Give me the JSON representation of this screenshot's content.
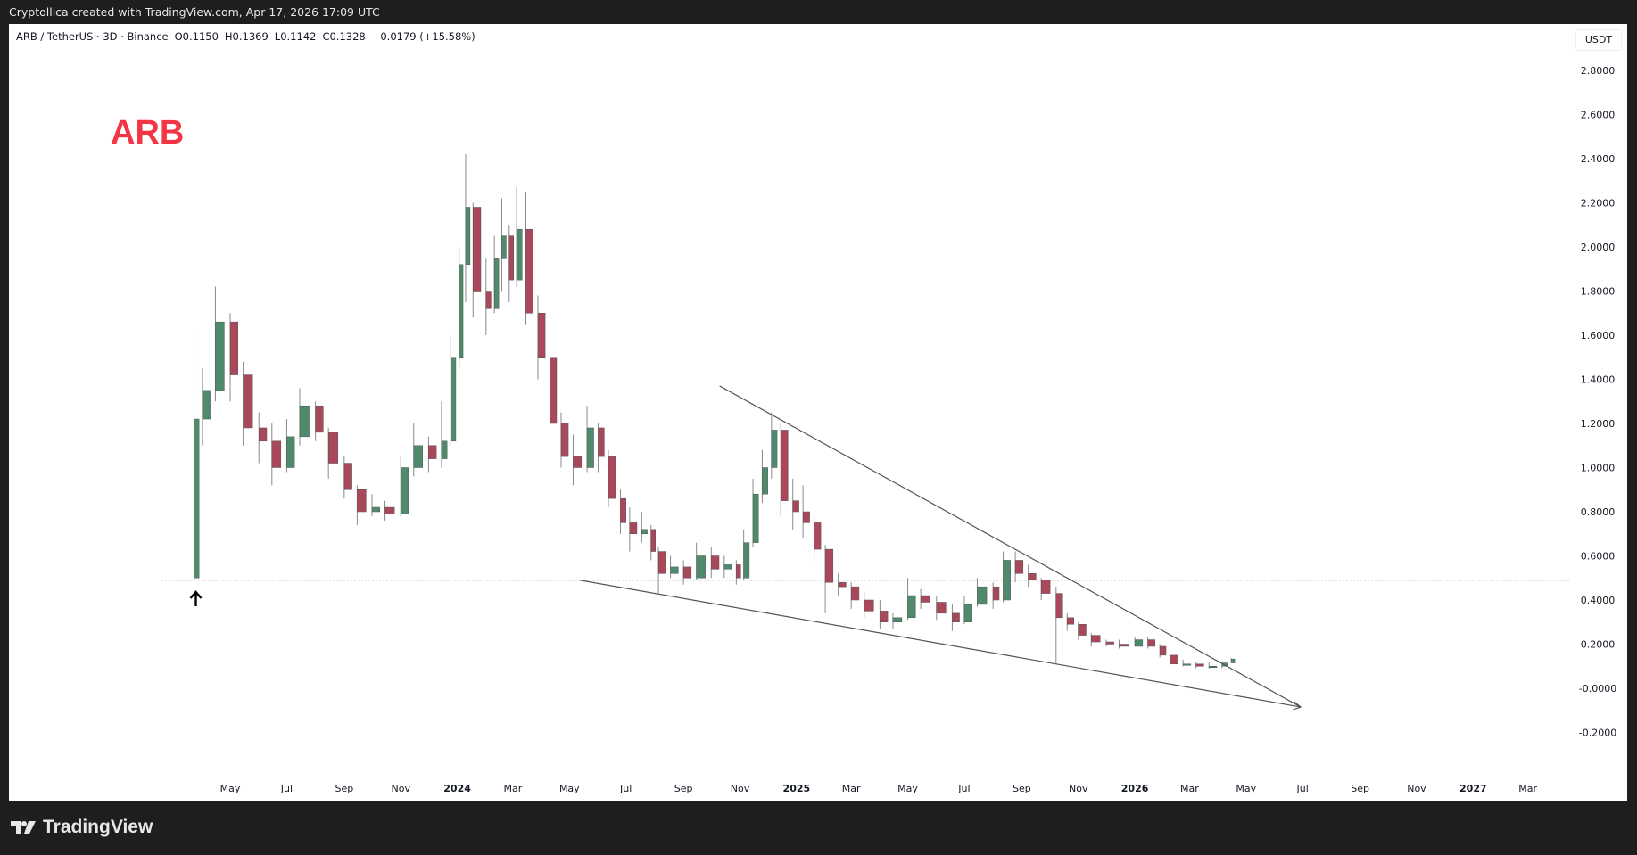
{
  "header": {
    "attribution": "Cryptollica created with TradingView.com, Apr 17, 2026 17:09 UTC"
  },
  "legend": {
    "symbol": "ARB / TetherUS · 3D · Binance",
    "open": "O0.1150",
    "high": "H0.1369",
    "low": "L0.1142",
    "close": "C0.1328",
    "change": "+0.0179 (+15.58%)"
  },
  "annotation": {
    "text": "ARB",
    "color": "#f23645"
  },
  "footer": {
    "brand": "TradingView"
  },
  "chart_data": {
    "type": "candlestick",
    "currency": "USDT",
    "ylim": [
      -0.3,
      2.95
    ],
    "y_ticks": [
      "2.8000",
      "2.6000",
      "2.4000",
      "2.2000",
      "2.0000",
      "1.8000",
      "1.6000",
      "1.4000",
      "1.2000",
      "1.0000",
      "0.8000",
      "0.6000",
      "0.4000",
      "0.2000",
      "-0.0000",
      "-0.2000"
    ],
    "x_ticks": [
      {
        "date": "2023-05-01",
        "label": "May"
      },
      {
        "date": "2023-07-01",
        "label": "Jul"
      },
      {
        "date": "2023-09-01",
        "label": "Sep"
      },
      {
        "date": "2023-11-01",
        "label": "Nov"
      },
      {
        "date": "2024-01-01",
        "label": "2024",
        "bold": true
      },
      {
        "date": "2024-03-01",
        "label": "Mar"
      },
      {
        "date": "2024-05-01",
        "label": "May"
      },
      {
        "date": "2024-07-01",
        "label": "Jul"
      },
      {
        "date": "2024-09-01",
        "label": "Sep"
      },
      {
        "date": "2024-11-01",
        "label": "Nov"
      },
      {
        "date": "2025-01-01",
        "label": "2025",
        "bold": true
      },
      {
        "date": "2025-03-01",
        "label": "Mar"
      },
      {
        "date": "2025-05-01",
        "label": "May"
      },
      {
        "date": "2025-07-01",
        "label": "Jul"
      },
      {
        "date": "2025-09-01",
        "label": "Sep"
      },
      {
        "date": "2025-11-01",
        "label": "Nov"
      },
      {
        "date": "2026-01-01",
        "label": "2026",
        "bold": true
      },
      {
        "date": "2026-03-01",
        "label": "Mar"
      },
      {
        "date": "2026-05-01",
        "label": "May"
      },
      {
        "date": "2026-07-01",
        "label": "Jul"
      },
      {
        "date": "2026-09-01",
        "label": "Sep"
      },
      {
        "date": "2026-11-01",
        "label": "Nov"
      },
      {
        "date": "2027-01-01",
        "label": "2027",
        "bold": true
      },
      {
        "date": "2027-03-01",
        "label": "Mar"
      }
    ],
    "colors": {
      "up": "#4e8a6b",
      "down": "#a8485a",
      "wick": "#8a8a8a",
      "trendline": "#555555"
    },
    "candles": [
      [
        "2023-03-23",
        0.5,
        1.6,
        0.49,
        1.22
      ],
      [
        "2023-04-01",
        1.22,
        1.45,
        1.1,
        1.35
      ],
      [
        "2023-04-15",
        1.35,
        1.82,
        1.3,
        1.66
      ],
      [
        "2023-05-01",
        1.66,
        1.7,
        1.3,
        1.42
      ],
      [
        "2023-05-15",
        1.42,
        1.48,
        1.1,
        1.18
      ],
      [
        "2023-06-01",
        1.18,
        1.25,
        1.02,
        1.12
      ],
      [
        "2023-06-15",
        1.12,
        1.2,
        0.92,
        1.0
      ],
      [
        "2023-07-01",
        1.0,
        1.22,
        0.98,
        1.14
      ],
      [
        "2023-07-15",
        1.14,
        1.36,
        1.1,
        1.28
      ],
      [
        "2023-08-01",
        1.28,
        1.3,
        1.12,
        1.16
      ],
      [
        "2023-08-15",
        1.16,
        1.18,
        0.95,
        1.02
      ],
      [
        "2023-09-01",
        1.02,
        1.05,
        0.86,
        0.9
      ],
      [
        "2023-09-15",
        0.9,
        0.92,
        0.74,
        0.8
      ],
      [
        "2023-10-01",
        0.8,
        0.88,
        0.78,
        0.82
      ],
      [
        "2023-10-15",
        0.82,
        0.85,
        0.76,
        0.79
      ],
      [
        "2023-11-01",
        0.79,
        1.05,
        0.78,
        1.0
      ],
      [
        "2023-11-15",
        1.0,
        1.2,
        0.96,
        1.1
      ],
      [
        "2023-12-01",
        1.1,
        1.14,
        0.98,
        1.04
      ],
      [
        "2023-12-15",
        1.04,
        1.3,
        1.0,
        1.12
      ],
      [
        "2023-12-25",
        1.12,
        1.6,
        1.1,
        1.5
      ],
      [
        "2024-01-03",
        1.5,
        2.0,
        1.45,
        1.92
      ],
      [
        "2024-01-10",
        1.92,
        2.42,
        1.75,
        2.18
      ],
      [
        "2024-01-18",
        2.18,
        2.2,
        1.68,
        1.8
      ],
      [
        "2024-02-01",
        1.8,
        1.95,
        1.6,
        1.72
      ],
      [
        "2024-02-10",
        1.72,
        2.05,
        1.7,
        1.95
      ],
      [
        "2024-02-18",
        1.95,
        2.22,
        1.8,
        2.05
      ],
      [
        "2024-02-26",
        2.05,
        2.1,
        1.75,
        1.85
      ],
      [
        "2024-03-05",
        1.85,
        2.27,
        1.82,
        2.08
      ],
      [
        "2024-03-15",
        2.08,
        2.25,
        1.65,
        1.7
      ],
      [
        "2024-03-28",
        1.7,
        1.78,
        1.4,
        1.5
      ],
      [
        "2024-04-10",
        1.5,
        1.52,
        0.86,
        1.2
      ],
      [
        "2024-04-22",
        1.2,
        1.25,
        1.0,
        1.05
      ],
      [
        "2024-05-05",
        1.05,
        1.15,
        0.92,
        1.0
      ],
      [
        "2024-05-20",
        1.0,
        1.28,
        0.98,
        1.18
      ],
      [
        "2024-06-01",
        1.18,
        1.2,
        0.98,
        1.05
      ],
      [
        "2024-06-12",
        1.05,
        1.08,
        0.82,
        0.86
      ],
      [
        "2024-06-25",
        0.86,
        0.9,
        0.7,
        0.75
      ],
      [
        "2024-07-05",
        0.75,
        0.82,
        0.62,
        0.7
      ],
      [
        "2024-07-18",
        0.7,
        0.8,
        0.66,
        0.72
      ],
      [
        "2024-07-28",
        0.72,
        0.74,
        0.58,
        0.62
      ],
      [
        "2024-08-05",
        0.62,
        0.64,
        0.43,
        0.52
      ],
      [
        "2024-08-18",
        0.52,
        0.6,
        0.5,
        0.55
      ],
      [
        "2024-09-01",
        0.55,
        0.58,
        0.47,
        0.5
      ],
      [
        "2024-09-15",
        0.5,
        0.66,
        0.49,
        0.6
      ],
      [
        "2024-10-01",
        0.6,
        0.64,
        0.5,
        0.54
      ],
      [
        "2024-10-15",
        0.54,
        0.6,
        0.5,
        0.56
      ],
      [
        "2024-10-28",
        0.56,
        0.58,
        0.47,
        0.5
      ],
      [
        "2024-11-05",
        0.5,
        0.72,
        0.49,
        0.66
      ],
      [
        "2024-11-15",
        0.66,
        0.95,
        0.64,
        0.88
      ],
      [
        "2024-11-25",
        0.88,
        1.08,
        0.84,
        1.0
      ],
      [
        "2024-12-05",
        1.0,
        1.25,
        0.95,
        1.17
      ],
      [
        "2024-12-15",
        1.17,
        1.2,
        0.78,
        0.85
      ],
      [
        "2024-12-28",
        0.85,
        0.95,
        0.72,
        0.8
      ],
      [
        "2025-01-08",
        0.8,
        0.92,
        0.68,
        0.75
      ],
      [
        "2025-01-20",
        0.75,
        0.78,
        0.58,
        0.63
      ],
      [
        "2025-02-01",
        0.63,
        0.65,
        0.34,
        0.48
      ],
      [
        "2025-02-15",
        0.48,
        0.52,
        0.42,
        0.46
      ],
      [
        "2025-03-01",
        0.46,
        0.48,
        0.36,
        0.4
      ],
      [
        "2025-03-15",
        0.4,
        0.44,
        0.32,
        0.35
      ],
      [
        "2025-04-01",
        0.35,
        0.4,
        0.27,
        0.3
      ],
      [
        "2025-04-15",
        0.3,
        0.34,
        0.27,
        0.32
      ],
      [
        "2025-05-01",
        0.32,
        0.5,
        0.31,
        0.42
      ],
      [
        "2025-05-15",
        0.42,
        0.45,
        0.36,
        0.39
      ],
      [
        "2025-06-01",
        0.39,
        0.42,
        0.31,
        0.34
      ],
      [
        "2025-06-18",
        0.34,
        0.38,
        0.26,
        0.3
      ],
      [
        "2025-07-01",
        0.3,
        0.42,
        0.29,
        0.38
      ],
      [
        "2025-07-15",
        0.38,
        0.5,
        0.37,
        0.46
      ],
      [
        "2025-08-01",
        0.46,
        0.48,
        0.36,
        0.4
      ],
      [
        "2025-08-12",
        0.4,
        0.62,
        0.39,
        0.58
      ],
      [
        "2025-08-25",
        0.58,
        0.62,
        0.48,
        0.52
      ],
      [
        "2025-09-08",
        0.52,
        0.56,
        0.46,
        0.49
      ],
      [
        "2025-09-22",
        0.49,
        0.5,
        0.4,
        0.43
      ],
      [
        "2025-10-08",
        0.43,
        0.46,
        0.11,
        0.32
      ],
      [
        "2025-10-20",
        0.32,
        0.34,
        0.26,
        0.29
      ],
      [
        "2025-11-01",
        0.29,
        0.3,
        0.22,
        0.24
      ],
      [
        "2025-11-15",
        0.24,
        0.25,
        0.19,
        0.21
      ],
      [
        "2025-12-01",
        0.21,
        0.22,
        0.19,
        0.2
      ],
      [
        "2025-12-15",
        0.2,
        0.22,
        0.18,
        0.19
      ],
      [
        "2026-01-01",
        0.19,
        0.23,
        0.19,
        0.22
      ],
      [
        "2026-01-15",
        0.22,
        0.23,
        0.18,
        0.19
      ],
      [
        "2026-01-28",
        0.19,
        0.2,
        0.14,
        0.15
      ],
      [
        "2026-02-08",
        0.15,
        0.16,
        0.1,
        0.11
      ],
      [
        "2026-02-22",
        0.11,
        0.13,
        0.1,
        0.11
      ],
      [
        "2026-03-08",
        0.11,
        0.12,
        0.09,
        0.1
      ],
      [
        "2026-03-22",
        0.1,
        0.12,
        0.09,
        0.1
      ],
      [
        "2026-04-05",
        0.1,
        0.11,
        0.09,
        0.115
      ],
      [
        "2026-04-15",
        0.115,
        0.1369,
        0.1142,
        0.1328
      ]
    ],
    "trendlines": [
      {
        "name": "upper-trendline",
        "from": [
          "2024-10-10",
          1.37
        ],
        "to": [
          "2026-06-29",
          -0.085
        ],
        "arrow": false
      },
      {
        "name": "lower-trendline",
        "from": [
          "2024-05-12",
          0.49
        ],
        "to": [
          "2026-06-29",
          -0.085
        ],
        "arrow": true
      }
    ],
    "horizontal_line": {
      "price": 0.49,
      "from": "2023-02-16",
      "style": "dotted"
    },
    "marker": {
      "type": "arrow-up",
      "date": "2023-03-23"
    }
  }
}
